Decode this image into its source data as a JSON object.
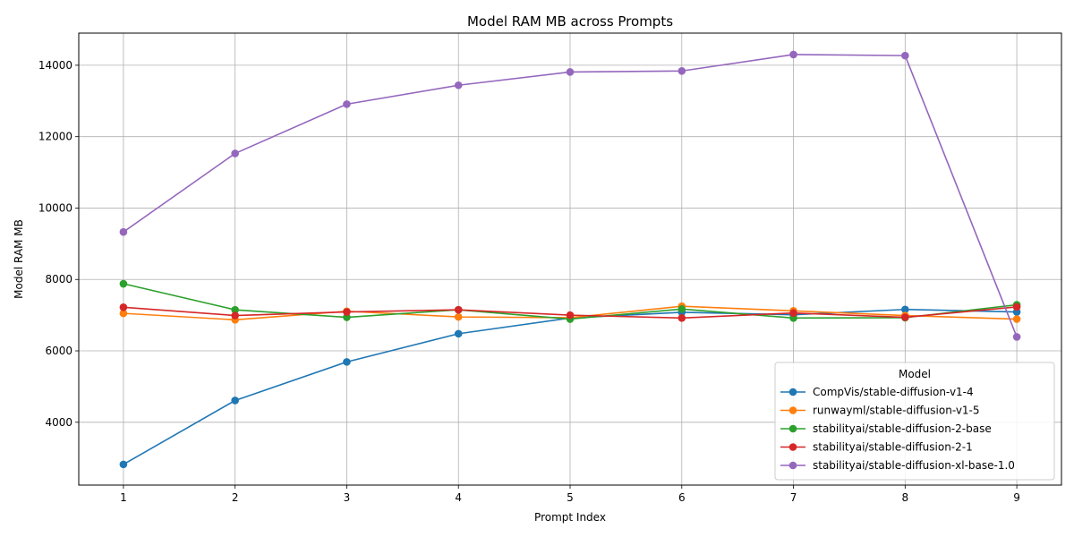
{
  "chart_data": {
    "type": "line",
    "title": "Model RAM MB across Prompts",
    "xlabel": "Prompt Index",
    "ylabel": "Model RAM MB",
    "x": [
      1,
      2,
      3,
      4,
      5,
      6,
      7,
      8,
      9
    ],
    "xlim": [
      0.6,
      9.4
    ],
    "ylim": [
      2240,
      14900
    ],
    "yticks": [
      4000,
      6000,
      8000,
      10000,
      12000,
      14000
    ],
    "grid": true,
    "legend": {
      "title": "Model",
      "placement": "lower-right"
    },
    "series": [
      {
        "name": "CompVis/stable-diffusion-v1-4",
        "color": "#1f77b4",
        "values": [
          2820,
          4610,
          5690,
          6480,
          6920,
          7080,
          7010,
          7160,
          7090
        ]
      },
      {
        "name": "runwayml/stable-diffusion-v1-5",
        "color": "#ff7f0e",
        "values": [
          7050,
          6870,
          7110,
          6950,
          6930,
          7250,
          7120,
          6990,
          6890
        ]
      },
      {
        "name": "stabilityai/stable-diffusion-2-base",
        "color": "#2ca02c",
        "values": [
          7880,
          7150,
          6940,
          7150,
          6890,
          7170,
          6920,
          6930,
          7290
        ]
      },
      {
        "name": "stabilityai/stable-diffusion-2-1",
        "color": "#d62728",
        "values": [
          7220,
          6990,
          7090,
          7150,
          7000,
          6920,
          7060,
          6940,
          7230
        ]
      },
      {
        "name": "stabilityai/stable-diffusion-xl-base-1.0",
        "color": "#9467bd",
        "values": [
          9330,
          11530,
          12910,
          13440,
          13810,
          13840,
          14300,
          14270,
          6390
        ]
      }
    ]
  }
}
